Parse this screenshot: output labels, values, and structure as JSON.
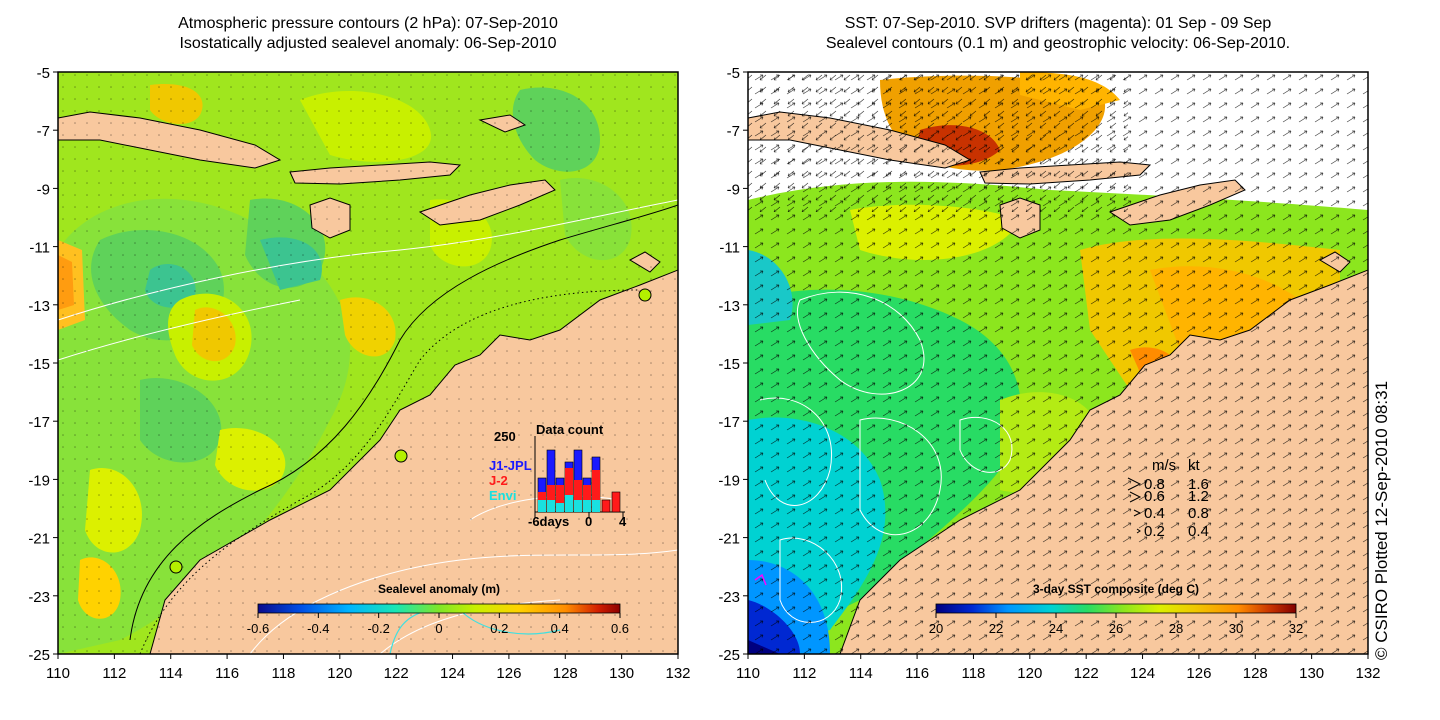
{
  "left_panel": {
    "title_line1": "Atmospheric pressure contours (2 hPa): 07-Sep-2010",
    "title_line2": "Isostatically adjusted sealevel anomaly: 06-Sep-2010",
    "colorbar": {
      "label": "Sealevel anomaly (m)",
      "ticks": [
        "-0.6",
        "-0.4",
        "-0.2",
        "0",
        "0.2",
        "0.4",
        "0.6"
      ]
    },
    "inset": {
      "title": "Data count",
      "ymax_label": "250",
      "x_labels": [
        "-6days",
        "0",
        "4"
      ],
      "legend": [
        {
          "label": "J1-JPL",
          "color": "#1a1aff"
        },
        {
          "label": "J-2",
          "color": "#ff1a1a"
        },
        {
          "label": "Envi",
          "color": "#19e0e0"
        }
      ]
    }
  },
  "right_panel": {
    "title_line1": "SST: 07-Sep-2010. SVP drifters (magenta): 01 Sep - 09 Sep",
    "title_line2": "Sealevel contours (0.1 m) and geostrophic velocity: 06-Sep-2010.",
    "colorbar": {
      "label": "3-day SST composite (deg C)",
      "ticks": [
        "20",
        "22",
        "24",
        "26",
        "28",
        "30",
        "32"
      ]
    },
    "speed_key": {
      "header_ms": "m/s",
      "header_kt": "kt",
      "rows": [
        {
          "ms": "0.8",
          "kt": "1.6"
        },
        {
          "ms": "0.6",
          "kt": "1.2"
        },
        {
          "ms": "0.4",
          "kt": "0.8"
        },
        {
          "ms": "0.2",
          "kt": "0.4"
        }
      ]
    }
  },
  "axes": {
    "lat_labels": [
      "-5",
      "-7",
      "-9",
      "-11",
      "-13",
      "-15",
      "-17",
      "-19",
      "-21",
      "-23",
      "-25"
    ],
    "lon_labels": [
      "110",
      "112",
      "114",
      "116",
      "118",
      "120",
      "122",
      "124",
      "126",
      "128",
      "130",
      "132"
    ]
  },
  "credit": "© CSIRO Plotted 12-Sep-2010 08:31",
  "colors": {
    "land": "#f8c89e",
    "sla_cmap": [
      "#0a0a8c",
      "#0050e6",
      "#00b4ff",
      "#19e6b4",
      "#7fe628",
      "#c8f000",
      "#ffd200",
      "#ff8c00",
      "#d21e00",
      "#8c0000"
    ],
    "sst_cmap": [
      "#000080",
      "#0028d2",
      "#0096ff",
      "#00d2d2",
      "#28dc64",
      "#8ce61e",
      "#dcf000",
      "#f0c800",
      "#ff8c00",
      "#c83200",
      "#820000"
    ]
  }
}
